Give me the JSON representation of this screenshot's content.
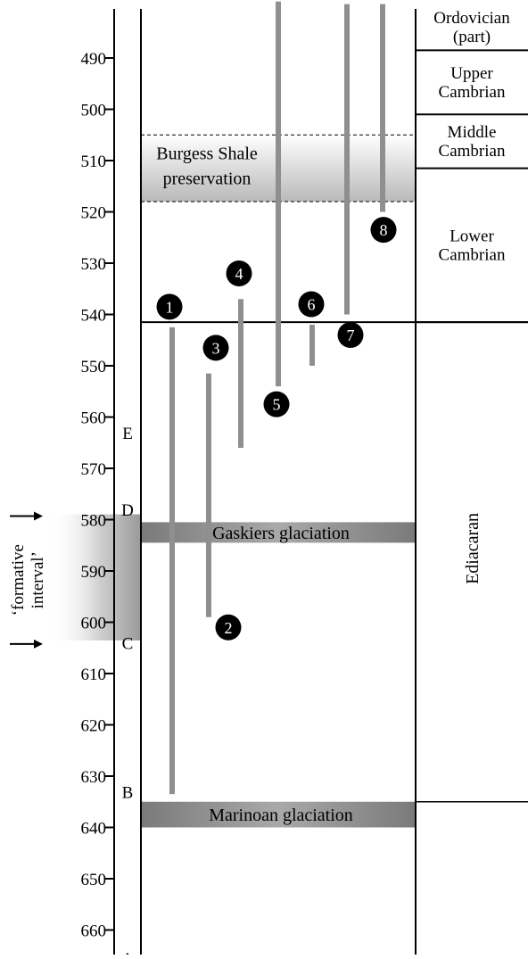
{
  "age_axis": {
    "ticks": [
      490,
      500,
      510,
      520,
      530,
      540,
      550,
      560,
      570,
      580,
      590,
      600,
      610,
      620,
      630,
      640,
      650,
      660
    ]
  },
  "zone_letters": [
    {
      "label": "E",
      "age": 563
    },
    {
      "label": "D",
      "age": 578
    },
    {
      "label": "C",
      "age": 604
    },
    {
      "label": "B",
      "age": 633
    },
    {
      "label": "A",
      "age": 665.5
    }
  ],
  "periods": [
    {
      "lines": [
        "Ordovician",
        "(part)"
      ],
      "top_age": 479.5,
      "bottom_age": 488.5
    },
    {
      "lines": [
        "Upper",
        "Cambrian"
      ],
      "top_age": 488.5,
      "bottom_age": 501
    },
    {
      "lines": [
        "Middle",
        "Cambrian"
      ],
      "top_age": 501,
      "bottom_age": 511.5
    },
    {
      "lines": [
        "Lower",
        "Cambrian"
      ],
      "top_age": 511.5,
      "bottom_age": 541.5
    },
    {
      "lines": [
        "Ediacaran"
      ],
      "top_age": 541.5,
      "bottom_age": 635,
      "vertical": true
    }
  ],
  "boundary_age": 541.5,
  "glaciations": [
    {
      "label": "Gaskiers glaciation",
      "top_age": 580.5,
      "bottom_age": 584.5
    },
    {
      "label": "Marinoan glaciation",
      "top_age": 635,
      "bottom_age": 640
    }
  ],
  "burgess_shale": {
    "lines": [
      "Burgess Shale",
      "preservation"
    ],
    "top_age": 505,
    "bottom_age": 518
  },
  "formative_interval": {
    "label": [
      "‘formative",
      "interval’"
    ],
    "top_age": 580,
    "bottom_age": 602.5
  },
  "ranges": [
    {
      "id": "1",
      "top_age": 542.5,
      "bottom_age": 633.5,
      "label_age": 538.5,
      "label_side": "top"
    },
    {
      "id": "2",
      "top_age": 551.5,
      "bottom_age": 599,
      "label_age": 601,
      "label_side": "bottom"
    },
    {
      "id": "3",
      "top_age": 551.5,
      "bottom_age": 599,
      "label_age": 546.5,
      "label_side": "top"
    },
    {
      "id": "4",
      "top_age": 537,
      "bottom_age": 566,
      "label_age": 532,
      "label_side": "top"
    },
    {
      "id": "5",
      "top_age": 479,
      "bottom_age": 554,
      "label_age": 557.5,
      "label_side": "bottom"
    },
    {
      "id": "6",
      "top_age": 542,
      "bottom_age": 550,
      "label_age": 538,
      "label_side": "top"
    },
    {
      "id": "7",
      "top_age": 479.5,
      "bottom_age": 540,
      "label_age": 544,
      "label_side": "bottom"
    },
    {
      "id": "8",
      "top_age": 479.5,
      "bottom_age": 520,
      "label_age": 523.5,
      "label_side": "bottom"
    }
  ],
  "colors": {
    "range_bar": "#8f8f8f",
    "glaciation_band": "#6e6e6e",
    "burgess_gradient": "#bdbdbd",
    "formative_band": "#9e9e9e",
    "marker_fill": "#000000",
    "marker_text": "#ffffff",
    "axis": "#000000"
  }
}
